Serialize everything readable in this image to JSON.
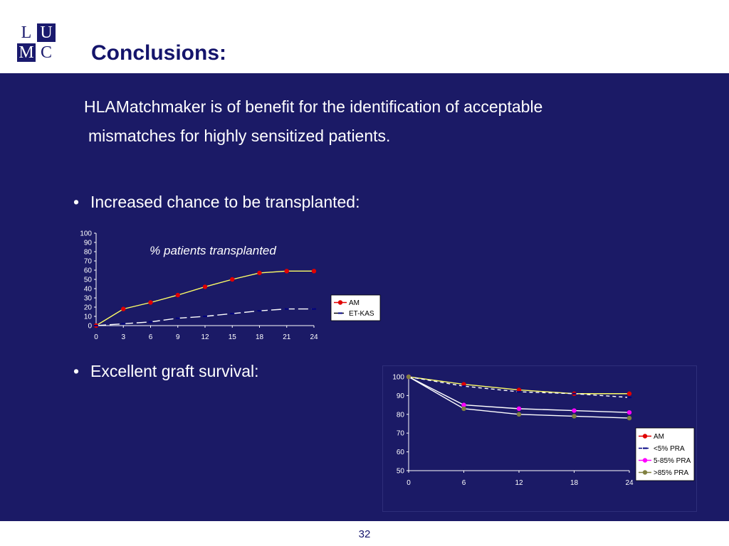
{
  "header": {
    "logo": {
      "l": "L",
      "u": "U",
      "m": "M",
      "c": "C"
    },
    "title": "Conclusions:"
  },
  "main": {
    "paragraph_line1": "HLAMatchmaker is of benefit for the identification of acceptable",
    "paragraph_line2": "mismatches for highly sensitized patients.",
    "bullets": [
      {
        "dot": "•",
        "text": "Increased chance to be transplanted:"
      },
      {
        "dot": "•",
        "text": "Excellent graft survival:"
      }
    ]
  },
  "footer": {
    "page_number": "32"
  },
  "colors": {
    "background": "#1b1a66",
    "am": "#e00000",
    "am_line": "#ffff66",
    "etkas": "#000080",
    "lt5": "#000080",
    "pra5_85": "#ff00ff",
    "gt85": "#808040"
  },
  "chart_data": [
    {
      "type": "line",
      "title": "% patients transplanted",
      "x": [
        0,
        3,
        6,
        9,
        12,
        15,
        18,
        21,
        24
      ],
      "ylim": [
        0,
        100
      ],
      "yticks": [
        0,
        10,
        20,
        30,
        40,
        50,
        60,
        70,
        80,
        90,
        100
      ],
      "legend_position": "right",
      "series": [
        {
          "name": "AM",
          "values": [
            0,
            18,
            25,
            33,
            42,
            50,
            57,
            59,
            59
          ]
        },
        {
          "name": "ET-KAS",
          "values": [
            0,
            2,
            4,
            8,
            10,
            13,
            16,
            18,
            18
          ]
        }
      ]
    },
    {
      "type": "line",
      "x": [
        0,
        6,
        12,
        18,
        24
      ],
      "ylim": [
        50,
        100
      ],
      "yticks": [
        50,
        60,
        70,
        80,
        90,
        100
      ],
      "legend_position": "right",
      "series": [
        {
          "name": "AM",
          "values": [
            100,
            96,
            93,
            91,
            91
          ]
        },
        {
          "name": "<5% PRA",
          "values": [
            100,
            95,
            92,
            91,
            89
          ]
        },
        {
          "name": "5-85% PRA",
          "values": [
            100,
            85,
            83,
            82,
            81
          ]
        },
        {
          "name": ">85% PRA",
          "values": [
            100,
            83,
            80,
            79,
            78
          ]
        }
      ]
    }
  ]
}
